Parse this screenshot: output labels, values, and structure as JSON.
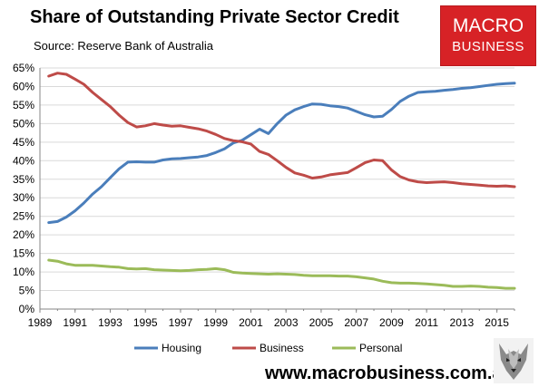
{
  "header": {
    "title": "Share of Outstanding Private Sector Credit",
    "subtitle": "Source: Reserve Bank of Australia"
  },
  "logo": {
    "line1": "MACRO",
    "line2": "BUSINESS",
    "color": "#d72226"
  },
  "footer": {
    "url": "www.macrobusiness.com.au"
  },
  "chart_data": {
    "type": "line",
    "title": "Share of Outstanding Private Sector Credit",
    "xlabel": "",
    "ylabel": "",
    "xlim": [
      1989,
      2016
    ],
    "ylim": [
      0,
      65
    ],
    "x_ticks": [
      "1989",
      "1991",
      "1993",
      "1995",
      "1997",
      "1999",
      "2001",
      "2003",
      "2005",
      "2007",
      "2009",
      "2011",
      "2013",
      "2015"
    ],
    "y_ticks": [
      "0%",
      "5%",
      "10%",
      "15%",
      "20%",
      "25%",
      "30%",
      "35%",
      "40%",
      "45%",
      "50%",
      "55%",
      "60%",
      "65%"
    ],
    "grid": "horizontal",
    "legend_position": "bottom",
    "series": [
      {
        "name": "Housing",
        "color": "#4a7ebb",
        "x": [
          1989.5,
          1990,
          1990.5,
          1991,
          1991.5,
          1992,
          1992.5,
          1993,
          1993.5,
          1994,
          1994.5,
          1995,
          1995.5,
          1996,
          1996.5,
          1997,
          1997.5,
          1998,
          1998.5,
          1999,
          1999.5,
          2000,
          2000.5,
          2001,
          2001.5,
          2002,
          2002.5,
          2003,
          2003.5,
          2004,
          2004.5,
          2005,
          2005.5,
          2006,
          2006.5,
          2007,
          2007.5,
          2008,
          2008.5,
          2009,
          2009.5,
          2010,
          2010.5,
          2011,
          2011.5,
          2012,
          2012.5,
          2013,
          2013.5,
          2014,
          2014.5,
          2015,
          2015.5,
          2016
        ],
        "values": [
          23.3,
          23.6,
          24.8,
          26.5,
          28.6,
          31.0,
          33.0,
          35.4,
          37.8,
          39.6,
          39.7,
          39.6,
          39.6,
          40.2,
          40.5,
          40.6,
          40.8,
          41.0,
          41.4,
          42.2,
          43.2,
          44.8,
          45.5,
          47.0,
          48.5,
          47.3,
          50.0,
          52.3,
          53.7,
          54.6,
          55.3,
          55.2,
          54.8,
          54.6,
          54.2,
          53.3,
          52.4,
          51.8,
          52.0,
          53.8,
          56.0,
          57.4,
          58.4,
          58.6,
          58.7,
          59.0,
          59.2,
          59.5,
          59.7,
          60.0,
          60.3,
          60.6,
          60.8,
          60.9
        ]
      },
      {
        "name": "Business",
        "color": "#be4b48",
        "x": [
          1989.5,
          1990,
          1990.5,
          1991,
          1991.5,
          1992,
          1992.5,
          1993,
          1993.5,
          1994,
          1994.5,
          1995,
          1995.5,
          1996,
          1996.5,
          1997,
          1997.5,
          1998,
          1998.5,
          1999,
          1999.5,
          2000,
          2000.5,
          2001,
          2001.5,
          2002,
          2002.5,
          2003,
          2003.5,
          2004,
          2004.5,
          2005,
          2005.5,
          2006,
          2006.5,
          2007,
          2007.5,
          2008,
          2008.5,
          2009,
          2009.5,
          2010,
          2010.5,
          2011,
          2011.5,
          2012,
          2012.5,
          2013,
          2013.5,
          2014,
          2014.5,
          2015,
          2015.5,
          2016
        ],
        "values": [
          62.8,
          63.6,
          63.3,
          62.0,
          60.6,
          58.4,
          56.5,
          54.6,
          52.3,
          50.3,
          49.1,
          49.4,
          50.0,
          49.6,
          49.3,
          49.4,
          49.0,
          48.6,
          48.0,
          47.1,
          46.0,
          45.4,
          45.1,
          44.5,
          42.5,
          41.7,
          40.0,
          38.2,
          36.7,
          36.1,
          35.3,
          35.6,
          36.2,
          36.5,
          36.8,
          38.1,
          39.5,
          40.2,
          40.0,
          37.5,
          35.7,
          34.8,
          34.3,
          34.1,
          34.2,
          34.3,
          34.1,
          33.8,
          33.6,
          33.4,
          33.2,
          33.1,
          33.2,
          33.0
        ]
      },
      {
        "name": "Personal",
        "color": "#9bbb59",
        "x": [
          1989.5,
          1990,
          1990.5,
          1991,
          1991.5,
          1992,
          1992.5,
          1993,
          1993.5,
          1994,
          1994.5,
          1995,
          1995.5,
          1996,
          1996.5,
          1997,
          1997.5,
          1998,
          1998.5,
          1999,
          1999.5,
          2000,
          2000.5,
          2001,
          2001.5,
          2002,
          2002.5,
          2003,
          2003.5,
          2004,
          2004.5,
          2005,
          2005.5,
          2006,
          2006.5,
          2007,
          2007.5,
          2008,
          2008.5,
          2009,
          2009.5,
          2010,
          2010.5,
          2011,
          2011.5,
          2012,
          2012.5,
          2013,
          2013.5,
          2014,
          2014.5,
          2015,
          2015.5,
          2016
        ],
        "values": [
          13.2,
          12.9,
          12.2,
          11.8,
          11.8,
          11.8,
          11.6,
          11.4,
          11.3,
          10.9,
          10.8,
          10.9,
          10.6,
          10.5,
          10.4,
          10.3,
          10.4,
          10.6,
          10.7,
          10.9,
          10.6,
          9.9,
          9.7,
          9.6,
          9.5,
          9.4,
          9.5,
          9.4,
          9.3,
          9.1,
          9.0,
          9.0,
          9.0,
          8.9,
          8.9,
          8.7,
          8.4,
          8.1,
          7.5,
          7.1,
          7.0,
          7.0,
          6.9,
          6.8,
          6.6,
          6.4,
          6.1,
          6.1,
          6.2,
          6.1,
          5.9,
          5.8,
          5.6,
          5.6
        ]
      }
    ]
  }
}
